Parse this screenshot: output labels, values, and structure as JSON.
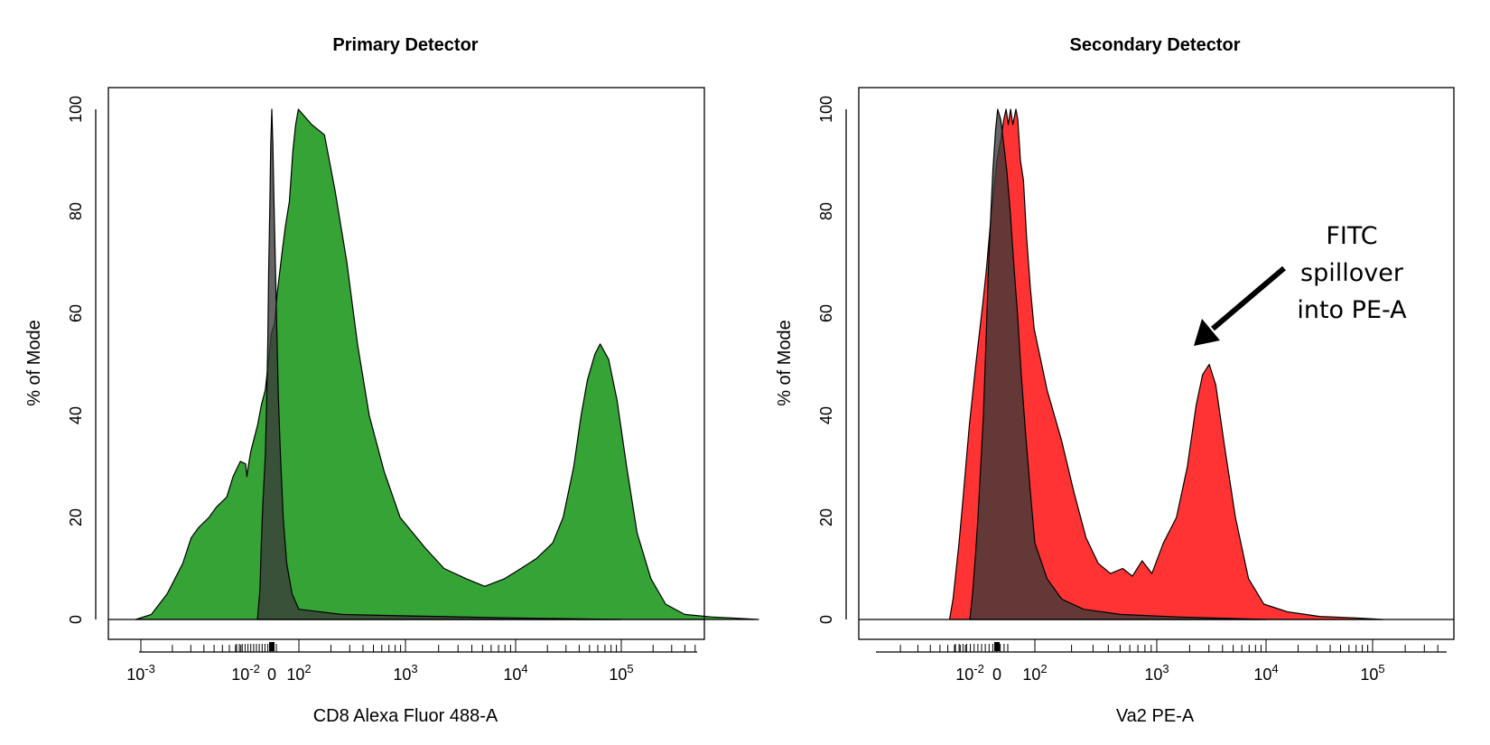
{
  "chart_data": [
    {
      "type": "area",
      "title": "Primary Detector",
      "xlabel": "CD8 Alexa Fluor 488-A",
      "ylabel": "% of Mode",
      "ylim": [
        0,
        100
      ],
      "y_ticks": [
        "0",
        "20",
        "40",
        "60",
        "80",
        "100"
      ],
      "x_tick_labels": [
        {
          "base": "10",
          "exp": "-3"
        },
        {
          "base": "10",
          "exp": "-2"
        },
        {
          "base": "0",
          "exp": ""
        },
        {
          "base": "10",
          "exp": "2"
        },
        {
          "base": "10",
          "exp": "3"
        },
        {
          "base": "10",
          "exp": "4"
        },
        {
          "base": "10",
          "exp": "5"
        }
      ],
      "series": [
        {
          "color": "#36a336",
          "points": [
            [
              -3.05,
              0
            ],
            [
              -2.9,
              1
            ],
            [
              -2.75,
              5
            ],
            [
              -2.6,
              11
            ],
            [
              -2.52,
              16
            ],
            [
              -2.45,
              18
            ],
            [
              -2.35,
              20
            ],
            [
              -2.28,
              22
            ],
            [
              -2.18,
              24
            ],
            [
              -2.12,
              28
            ],
            [
              -2.05,
              31
            ],
            [
              -2.0,
              30.5
            ],
            [
              -1.95,
              28
            ],
            [
              -1.9,
              30
            ],
            [
              -1.8,
              33
            ],
            [
              -1.55,
              38
            ],
            [
              -1.4,
              42
            ],
            [
              -1.25,
              45
            ],
            [
              -1.12,
              51
            ],
            [
              -1.02,
              56
            ],
            [
              -0.9,
              58
            ],
            [
              -0.8,
              64
            ],
            [
              -0.62,
              72
            ],
            [
              -0.5,
              77
            ],
            [
              -0.35,
              82
            ],
            [
              -0.22,
              92
            ],
            [
              -0.12,
              97
            ],
            [
              -0.02,
              100
            ],
            [
              0.12,
              97
            ],
            [
              0.24,
              95
            ],
            [
              0.34,
              84
            ],
            [
              0.45,
              70
            ],
            [
              0.55,
              54
            ],
            [
              0.66,
              40
            ],
            [
              0.8,
              29
            ],
            [
              0.95,
              20
            ],
            [
              1.18,
              14
            ],
            [
              1.35,
              10
            ],
            [
              1.55,
              8
            ],
            [
              1.72,
              6.5
            ],
            [
              1.9,
              8
            ],
            [
              2.05,
              10
            ],
            [
              2.2,
              12
            ],
            [
              2.35,
              15
            ],
            [
              2.45,
              20
            ],
            [
              2.55,
              30
            ],
            [
              2.62,
              40
            ],
            [
              2.68,
              47
            ],
            [
              2.75,
              52
            ],
            [
              2.8,
              54
            ],
            [
              2.88,
              51
            ],
            [
              2.96,
              43
            ],
            [
              3.05,
              30
            ],
            [
              3.15,
              17
            ],
            [
              3.28,
              8
            ],
            [
              3.42,
              3
            ],
            [
              3.6,
              1
            ],
            [
              3.85,
              0.5
            ],
            [
              4.05,
              0.3
            ],
            [
              4.3,
              0
            ]
          ]
        },
        {
          "color": "#3a3a3a",
          "points": [
            [
              -1.55,
              0
            ],
            [
              -1.45,
              6
            ],
            [
              -1.4,
              15
            ],
            [
              -1.35,
              22
            ],
            [
              -1.3,
              27
            ],
            [
              -1.25,
              32
            ],
            [
              -1.2,
              42
            ],
            [
              -1.15,
              55
            ],
            [
              -1.12,
              68
            ],
            [
              -1.08,
              80
            ],
            [
              -1.04,
              93
            ],
            [
              -1.0,
              100
            ],
            [
              -0.96,
              93
            ],
            [
              -0.92,
              82
            ],
            [
              -0.87,
              70
            ],
            [
              -0.82,
              58
            ],
            [
              -0.76,
              44
            ],
            [
              -0.68,
              32
            ],
            [
              -0.58,
              20
            ],
            [
              -0.45,
              11
            ],
            [
              -0.25,
              5
            ],
            [
              0.0,
              2
            ],
            [
              0.4,
              1
            ],
            [
              1.0,
              0.7
            ],
            [
              2.0,
              0.3
            ],
            [
              3.0,
              0
            ]
          ]
        }
      ]
    },
    {
      "type": "area",
      "title": "Secondary Detector",
      "xlabel": "Va2 PE-A",
      "ylabel": "% of Mode",
      "ylim": [
        0,
        100
      ],
      "y_ticks": [
        "0",
        "20",
        "40",
        "60",
        "80",
        "100"
      ],
      "x_tick_labels": [
        {
          "base": "10",
          "exp": "-2"
        },
        {
          "base": "0",
          "exp": ""
        },
        {
          "base": "10",
          "exp": "2"
        },
        {
          "base": "10",
          "exp": "3"
        },
        {
          "base": "10",
          "exp": "4"
        },
        {
          "base": "10",
          "exp": "5"
        }
      ],
      "series": [
        {
          "color": "#ff3333",
          "points": [
            [
              -2.75,
              0
            ],
            [
              -2.62,
              4
            ],
            [
              -2.5,
              10
            ],
            [
              -2.4,
              15
            ],
            [
              -2.28,
              22
            ],
            [
              -2.15,
              30
            ],
            [
              -2.02,
              38
            ],
            [
              -1.9,
              44
            ],
            [
              -1.78,
              50
            ],
            [
              -1.65,
              56
            ],
            [
              -1.52,
              62
            ],
            [
              -1.4,
              68
            ],
            [
              -1.3,
              74
            ],
            [
              -1.2,
              80
            ],
            [
              -1.1,
              85
            ],
            [
              -1.0,
              90
            ],
            [
              -0.9,
              94
            ],
            [
              -0.82,
              98
            ],
            [
              -0.76,
              100
            ],
            [
              -0.7,
              97
            ],
            [
              -0.64,
              100
            ],
            [
              -0.58,
              97
            ],
            [
              -0.5,
              100
            ],
            [
              -0.45,
              98
            ],
            [
              -0.38,
              90
            ],
            [
              -0.3,
              86
            ],
            [
              -0.22,
              75
            ],
            [
              -0.12,
              65
            ],
            [
              -0.02,
              57
            ],
            [
              0.1,
              45
            ],
            [
              0.22,
              35
            ],
            [
              0.32,
              25
            ],
            [
              0.42,
              16
            ],
            [
              0.52,
              11
            ],
            [
              0.62,
              9
            ],
            [
              0.72,
              10
            ],
            [
              0.8,
              8.5
            ],
            [
              0.88,
              11.5
            ],
            [
              0.96,
              9
            ],
            [
              1.06,
              15
            ],
            [
              1.18,
              20
            ],
            [
              1.28,
              30
            ],
            [
              1.36,
              42
            ],
            [
              1.42,
              48
            ],
            [
              1.48,
              50
            ],
            [
              1.54,
              46
            ],
            [
              1.62,
              34
            ],
            [
              1.72,
              20
            ],
            [
              1.84,
              8
            ],
            [
              1.98,
              3
            ],
            [
              2.2,
              1.5
            ],
            [
              2.5,
              0.6
            ],
            [
              2.85,
              0.3
            ],
            [
              3.1,
              0
            ]
          ]
        },
        {
          "color": "#3a3a3a",
          "points": [
            [
              -2.0,
              0
            ],
            [
              -1.9,
              5
            ],
            [
              -1.8,
              12
            ],
            [
              -1.7,
              20
            ],
            [
              -1.6,
              30
            ],
            [
              -1.5,
              40
            ],
            [
              -1.4,
              55
            ],
            [
              -1.32,
              68
            ],
            [
              -1.24,
              78
            ],
            [
              -1.15,
              88
            ],
            [
              -1.05,
              96
            ],
            [
              -0.98,
              100
            ],
            [
              -0.9,
              98
            ],
            [
              -0.82,
              93
            ],
            [
              -0.74,
              88
            ],
            [
              -0.65,
              80
            ],
            [
              -0.56,
              70
            ],
            [
              -0.46,
              60
            ],
            [
              -0.36,
              48
            ],
            [
              -0.24,
              36
            ],
            [
              -0.12,
              25
            ],
            [
              0.0,
              15
            ],
            [
              0.1,
              8
            ],
            [
              0.22,
              4
            ],
            [
              0.4,
              2
            ],
            [
              0.7,
              1
            ],
            [
              1.2,
              0.5
            ],
            [
              2.0,
              0
            ]
          ]
        }
      ],
      "annotation": [
        "FITC",
        "spillover",
        "into PE-A"
      ]
    }
  ]
}
